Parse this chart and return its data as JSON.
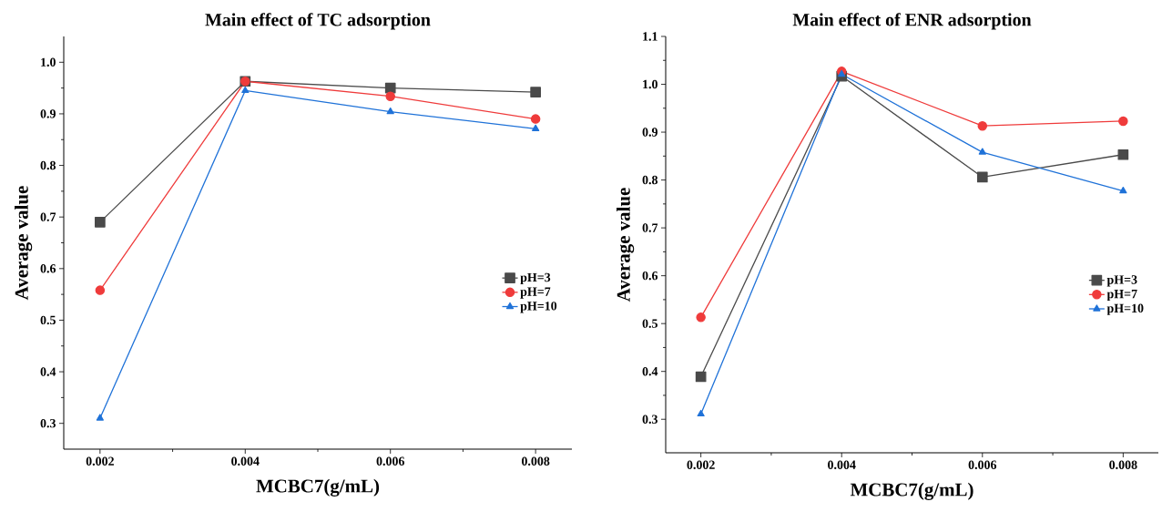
{
  "chart_data": [
    {
      "type": "line",
      "title": "Main effect of TC adsorption",
      "xlabel": "MCBC7(g/mL)",
      "ylabel": "Average value",
      "x": [
        0.002,
        0.004,
        0.006,
        0.008
      ],
      "series": [
        {
          "name": "pH=3",
          "color": "#4a4a4a",
          "marker": "square",
          "values": [
            0.69,
            0.963,
            0.95,
            0.942
          ]
        },
        {
          "name": "pH=7",
          "color": "#ef3b3b",
          "marker": "circle",
          "values": [
            0.558,
            0.963,
            0.934,
            0.89
          ]
        },
        {
          "name": "pH=10",
          "color": "#1f72d8",
          "marker": "triangle",
          "values": [
            0.31,
            0.945,
            0.904,
            0.871
          ]
        }
      ],
      "xlim": [
        0.0015,
        0.0085
      ],
      "ylim": [
        0.25,
        1.05
      ],
      "xticks": [
        0.002,
        0.004,
        0.006,
        0.008
      ],
      "yticks": [
        0.3,
        0.4,
        0.5,
        0.6,
        0.7,
        0.8,
        0.9,
        {
          "value": 1.0,
          "label": "1.0"
        }
      ],
      "legend": "right",
      "line_style": "solid"
    },
    {
      "type": "line",
      "title": "Main effect of ENR adsorption",
      "xlabel": "MCBC7(g/mL)",
      "ylabel": "Average value",
      "x": [
        0.002,
        0.004,
        0.006,
        0.008
      ],
      "series": [
        {
          "name": "pH=3",
          "color": "#4a4a4a",
          "marker": "square",
          "values": [
            0.389,
            1.017,
            0.806,
            0.853
          ]
        },
        {
          "name": "pH=7",
          "color": "#ef3b3b",
          "marker": "circle",
          "values": [
            0.513,
            1.027,
            0.913,
            0.923
          ]
        },
        {
          "name": "pH=10",
          "color": "#1f72d8",
          "marker": "triangle",
          "values": [
            0.311,
            1.021,
            0.858,
            0.777
          ]
        }
      ],
      "xlim": [
        0.0015,
        0.0085
      ],
      "ylim": [
        0.23,
        1.1
      ],
      "xticks": [
        0.002,
        0.004,
        0.006,
        0.008
      ],
      "yticks": [
        0.3,
        0.4,
        0.5,
        0.6,
        0.7,
        0.8,
        0.9,
        {
          "value": 1.0,
          "label": "1.0"
        },
        1.1
      ],
      "legend": "right",
      "line_style": "solid"
    }
  ]
}
